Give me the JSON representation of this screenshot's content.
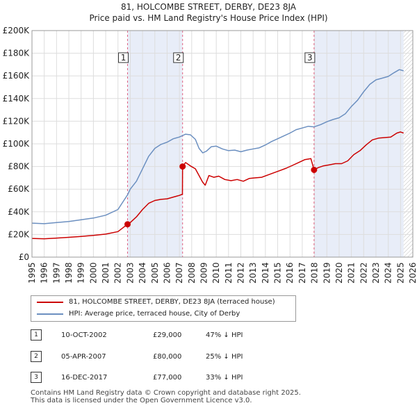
{
  "title_line1": "81, HOLCOMBE STREET, DERBY, DE23 8JA",
  "title_line2": "Price paid vs. HM Land Registry's House Price Index (HPI)",
  "chart_data": {
    "type": "line",
    "title": "81, HOLCOMBE STREET, DERBY, DE23 8JA — Price paid vs. HM Land Registry's House Price Index (HPI)",
    "xlabel": "",
    "ylabel": "",
    "xlim": [
      1995,
      2026
    ],
    "ylim": [
      0,
      200000
    ],
    "x_ticks": [
      1995,
      1996,
      1997,
      1998,
      1999,
      2000,
      2001,
      2002,
      2003,
      2004,
      2005,
      2006,
      2007,
      2008,
      2009,
      2010,
      2011,
      2012,
      2013,
      2014,
      2015,
      2016,
      2017,
      2018,
      2019,
      2020,
      2021,
      2022,
      2023,
      2024,
      2025,
      2026
    ],
    "y_ticks": [
      0,
      20000,
      40000,
      60000,
      80000,
      100000,
      120000,
      140000,
      160000,
      180000,
      200000
    ],
    "y_tick_labels": [
      "£0",
      "£20K",
      "£40K",
      "£60K",
      "£80K",
      "£100K",
      "£120K",
      "£140K",
      "£160K",
      "£180K",
      "£200K"
    ],
    "grid": true,
    "series": [
      {
        "name": "81, HOLCOMBE STREET, DERBY, DE23 8JA (terraced house)",
        "color": "#cc0000",
        "points": [
          [
            1995.0,
            16500
          ],
          [
            1996.0,
            16200
          ],
          [
            1997.0,
            16800
          ],
          [
            1998.0,
            17500
          ],
          [
            1999.0,
            18300
          ],
          [
            2000.0,
            19200
          ],
          [
            2001.0,
            20300
          ],
          [
            2002.0,
            22500
          ],
          [
            2002.78,
            29000
          ],
          [
            2003.0,
            30500
          ],
          [
            2003.5,
            35500
          ],
          [
            2004.0,
            42000
          ],
          [
            2004.5,
            47500
          ],
          [
            2005.0,
            50000
          ],
          [
            2005.5,
            51000
          ],
          [
            2006.0,
            51500
          ],
          [
            2006.5,
            53000
          ],
          [
            2007.0,
            54500
          ],
          [
            2007.25,
            55500
          ],
          [
            2007.26,
            80000
          ],
          [
            2007.5,
            83500
          ],
          [
            2007.9,
            80500
          ],
          [
            2008.3,
            78000
          ],
          [
            2008.6,
            72000
          ],
          [
            2008.9,
            66000
          ],
          [
            2009.1,
            63500
          ],
          [
            2009.4,
            72000
          ],
          [
            2009.8,
            70500
          ],
          [
            2010.2,
            71500
          ],
          [
            2010.7,
            68500
          ],
          [
            2011.2,
            67500
          ],
          [
            2011.7,
            68500
          ],
          [
            2012.2,
            67000
          ],
          [
            2012.7,
            69500
          ],
          [
            2013.2,
            70000
          ],
          [
            2013.7,
            70500
          ],
          [
            2014.2,
            72500
          ],
          [
            2014.7,
            74500
          ],
          [
            2015.2,
            76500
          ],
          [
            2015.7,
            78500
          ],
          [
            2016.2,
            81000
          ],
          [
            2016.7,
            83500
          ],
          [
            2017.2,
            86000
          ],
          [
            2017.7,
            87000
          ],
          [
            2017.96,
            77000
          ],
          [
            2018.3,
            79000
          ],
          [
            2018.7,
            80500
          ],
          [
            2019.2,
            81500
          ],
          [
            2019.7,
            82500
          ],
          [
            2020.2,
            82500
          ],
          [
            2020.7,
            85000
          ],
          [
            2021.2,
            90500
          ],
          [
            2021.7,
            94000
          ],
          [
            2022.2,
            99000
          ],
          [
            2022.7,
            103500
          ],
          [
            2023.2,
            105000
          ],
          [
            2023.7,
            105500
          ],
          [
            2024.2,
            106000
          ],
          [
            2024.7,
            109500
          ],
          [
            2025.0,
            110500
          ],
          [
            2025.25,
            109500
          ]
        ]
      },
      {
        "name": "HPI: Average price, terraced house, City of Derby",
        "color": "#6b8fc0",
        "points": [
          [
            1995.0,
            30000
          ],
          [
            1996.0,
            29500
          ],
          [
            1997.0,
            30500
          ],
          [
            1998.0,
            31500
          ],
          [
            1999.0,
            33000
          ],
          [
            2000.0,
            34500
          ],
          [
            2001.0,
            37000
          ],
          [
            2002.0,
            42000
          ],
          [
            2002.78,
            55000
          ],
          [
            2003.0,
            60000
          ],
          [
            2003.5,
            67000
          ],
          [
            2004.0,
            78000
          ],
          [
            2004.5,
            89000
          ],
          [
            2005.0,
            96000
          ],
          [
            2005.5,
            99500
          ],
          [
            2006.0,
            101500
          ],
          [
            2006.5,
            104500
          ],
          [
            2007.0,
            106000
          ],
          [
            2007.5,
            108500
          ],
          [
            2007.9,
            108000
          ],
          [
            2008.3,
            104000
          ],
          [
            2008.6,
            96000
          ],
          [
            2008.9,
            92000
          ],
          [
            2009.2,
            93500
          ],
          [
            2009.6,
            97500
          ],
          [
            2010.0,
            98000
          ],
          [
            2010.5,
            95500
          ],
          [
            2011.0,
            94000
          ],
          [
            2011.5,
            94500
          ],
          [
            2012.0,
            93000
          ],
          [
            2012.5,
            94500
          ],
          [
            2013.0,
            95500
          ],
          [
            2013.5,
            96500
          ],
          [
            2014.0,
            99000
          ],
          [
            2014.5,
            102000
          ],
          [
            2015.0,
            104500
          ],
          [
            2015.5,
            107000
          ],
          [
            2016.0,
            109500
          ],
          [
            2016.5,
            112500
          ],
          [
            2017.0,
            114000
          ],
          [
            2017.5,
            115500
          ],
          [
            2017.96,
            115000
          ],
          [
            2018.5,
            117000
          ],
          [
            2019.0,
            119500
          ],
          [
            2019.5,
            121500
          ],
          [
            2020.0,
            123000
          ],
          [
            2020.5,
            126500
          ],
          [
            2021.0,
            133000
          ],
          [
            2021.5,
            138500
          ],
          [
            2022.0,
            146000
          ],
          [
            2022.5,
            152500
          ],
          [
            2023.0,
            156500
          ],
          [
            2023.5,
            158000
          ],
          [
            2024.0,
            159500
          ],
          [
            2024.5,
            163000
          ],
          [
            2024.9,
            165500
          ],
          [
            2025.25,
            164500
          ]
        ]
      }
    ],
    "transactions": [
      {
        "num": "1",
        "x": 2002.78,
        "value": 29000
      },
      {
        "num": "2",
        "x": 2007.26,
        "value": 80000
      },
      {
        "num": "3",
        "x": 2017.96,
        "value": 77000
      }
    ],
    "forecast_start": 2025.25
  },
  "legend": {
    "property_label": "81, HOLCOMBE STREET, DERBY, DE23 8JA (terraced house)",
    "hpi_label": "HPI: Average price, terraced house, City of Derby",
    "property_color": "#cc0000",
    "hpi_color": "#6b8fc0"
  },
  "transactions_table": [
    {
      "num": "1",
      "date": "10-OCT-2002",
      "price": "£29,000",
      "hpi": "47% ↓ HPI"
    },
    {
      "num": "2",
      "date": "05-APR-2007",
      "price": "£80,000",
      "hpi": "25% ↓ HPI"
    },
    {
      "num": "3",
      "date": "16-DEC-2017",
      "price": "£77,000",
      "hpi": "33% ↓ HPI"
    }
  ],
  "footer_line1": "Contains HM Land Registry data © Crown copyright and database right 2025.",
  "footer_line2": "This data is licensed under the Open Government Licence v3.0."
}
